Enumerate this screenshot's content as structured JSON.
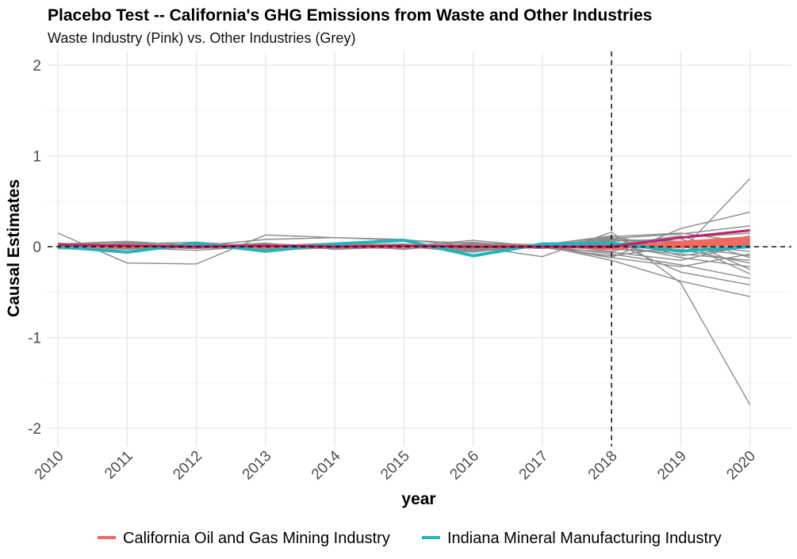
{
  "chart_data": {
    "type": "line",
    "title": "Placebo Test -- California's GHG Emissions from Waste and Other Industries",
    "subtitle": "Waste Industry (Pink) vs. Other Industries (Grey)",
    "xlabel": "year",
    "ylabel": "Causal Estimates",
    "x": [
      2010,
      2011,
      2012,
      2013,
      2014,
      2015,
      2016,
      2017,
      2018,
      2019,
      2020
    ],
    "xlim": [
      2009.85,
      2020.6
    ],
    "ylim": [
      -2.2,
      2.15
    ],
    "y_ticks": [
      -2,
      -1,
      0,
      1,
      2
    ],
    "treatment_year": 2018,
    "grid": true,
    "legend_position": "bottom",
    "colors": {
      "grey": "#8c8c8c",
      "pink": "#bf1f6b",
      "salmon": "#f0695f",
      "teal": "#21b5bd",
      "reference": "#000000"
    },
    "series_grey": [
      [
        0.15,
        -0.18,
        -0.19,
        0.13,
        0.1,
        0.08,
        0.0,
        -0.11,
        0.16,
        -0.4,
        -1.74
      ],
      [
        0.03,
        0.06,
        0.01,
        0.08,
        0.1,
        0.07,
        0.04,
        0.02,
        0.12,
        -0.05,
        0.75
      ],
      [
        -0.01,
        0.03,
        0.05,
        0.0,
        -0.02,
        0.0,
        0.07,
        0.0,
        -0.12,
        0.2,
        0.38
      ],
      [
        0.02,
        0.05,
        0.02,
        0.03,
        0.01,
        0.01,
        0.05,
        -0.01,
        0.09,
        0.14,
        0.23
      ],
      [
        0.04,
        0.0,
        -0.02,
        0.01,
        0.03,
        0.02,
        -0.02,
        0.01,
        -0.15,
        -0.38,
        -0.55
      ],
      [
        -0.02,
        -0.05,
        0.0,
        0.02,
        -0.01,
        -0.02,
        0.03,
        0.02,
        0.05,
        -0.28,
        -0.42
      ],
      [
        0.0,
        0.02,
        -0.01,
        -0.03,
        0.02,
        0.03,
        -0.04,
        0.01,
        -0.08,
        -0.2,
        -0.35
      ],
      [
        0.01,
        -0.03,
        0.03,
        -0.02,
        0.0,
        0.01,
        0.02,
        -0.02,
        0.07,
        0.05,
        -0.3
      ],
      [
        -0.01,
        0.04,
        0.0,
        0.04,
        -0.03,
        0.0,
        -0.06,
        0.03,
        -0.05,
        0.1,
        0.15
      ],
      [
        0.02,
        -0.01,
        -0.04,
        0.01,
        0.04,
        -0.01,
        0.01,
        0.0,
        0.03,
        -0.12,
        -0.22
      ],
      [
        0.0,
        0.01,
        0.02,
        -0.04,
        -0.01,
        0.02,
        -0.03,
        -0.01,
        -0.1,
        0.0,
        -0.1
      ],
      [
        0.01,
        -0.02,
        0.01,
        0.0,
        0.02,
        -0.03,
        0.04,
        0.02,
        0.11,
        0.15,
        0.05
      ],
      [
        -0.02,
        0.0,
        -0.02,
        0.02,
        0.0,
        0.01,
        -0.01,
        0.0,
        -0.02,
        -0.08,
        -0.15
      ],
      [
        0.03,
        0.02,
        0.0,
        -0.01,
        -0.02,
        0.0,
        0.02,
        0.01,
        0.04,
        0.02,
        -0.05
      ],
      [
        0.0,
        -0.01,
        0.01,
        0.01,
        0.01,
        -0.02,
        0.0,
        -0.01,
        -0.06,
        -0.15,
        0.02
      ],
      [
        0.01,
        0.03,
        -0.01,
        -0.02,
        0.03,
        0.02,
        -0.05,
        0.0,
        0.08,
        0.06,
        0.08
      ],
      [
        -0.01,
        0.01,
        0.02,
        0.0,
        -0.01,
        0.0,
        0.03,
        0.01,
        0.0,
        -0.03,
        -0.18
      ],
      [
        0.02,
        -0.02,
        -0.01,
        0.03,
        0.0,
        0.01,
        -0.02,
        0.02,
        -0.12,
        -0.22,
        -0.08
      ],
      [
        0.0,
        0.0,
        0.0,
        0.01,
        0.02,
        -0.01,
        0.01,
        -0.02,
        0.06,
        0.09,
        -0.25
      ],
      [
        0.01,
        0.02,
        0.01,
        -0.01,
        -0.01,
        0.02,
        -0.01,
        0.0,
        -0.03,
        -0.05,
        0.12
      ],
      [
        -0.01,
        -0.01,
        0.0,
        0.0,
        0.01,
        0.0,
        0.02,
        0.01,
        0.02,
        0.12,
        -0.12
      ],
      [
        0.02,
        0.01,
        -0.02,
        0.02,
        -0.02,
        0.01,
        0.0,
        0.0,
        0.1,
        -0.1,
        0.0
      ]
    ],
    "series_pink": [
      0.02,
      0.01,
      0.0,
      0.01,
      0.0,
      0.01,
      0.0,
      0.0,
      0.0,
      0.1,
      0.18
    ],
    "series_salmon": [
      [
        0.01,
        0.0,
        0.0,
        0.0,
        0.01,
        0.0,
        0.0,
        0.01,
        -0.02,
        0.05,
        0.1
      ],
      [
        0.0,
        0.01,
        0.0,
        0.01,
        0.0,
        0.0,
        0.0,
        0.0,
        0.0,
        0.03,
        0.07
      ],
      [
        0.01,
        0.0,
        0.01,
        0.0,
        0.0,
        0.01,
        0.0,
        0.0,
        0.01,
        0.0,
        0.04
      ],
      [
        0.0,
        0.0,
        0.0,
        0.0,
        0.0,
        0.0,
        0.0,
        0.0,
        -0.01,
        0.02,
        0.02
      ]
    ],
    "series_teal": [
      0.0,
      -0.06,
      0.04,
      -0.05,
      0.03,
      0.07,
      -0.1,
      0.03,
      0.04,
      -0.05,
      0.0
    ],
    "legend": [
      {
        "label": "California Oil and Gas Mining Industry",
        "color": "#f0695f"
      },
      {
        "label": "Indiana Mineral Manufacturing Industry",
        "color": "#21b5bd"
      }
    ]
  }
}
